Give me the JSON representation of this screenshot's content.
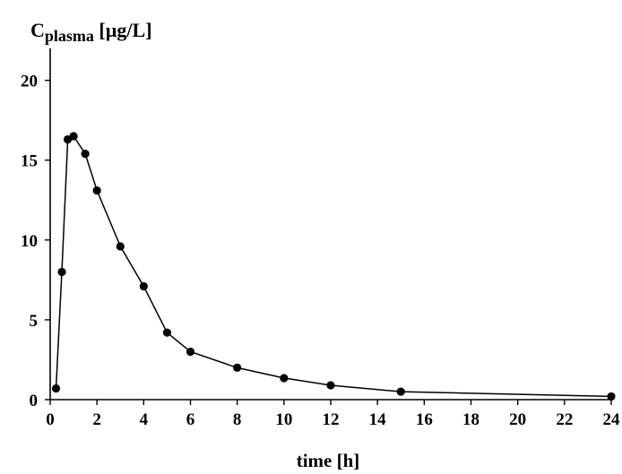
{
  "chart_data": {
    "type": "line",
    "title": "",
    "ylabel": {
      "main": "C",
      "sub": "plasma",
      "unit": " [µg/L]"
    },
    "xlabel": "time [h]",
    "xlim": [
      0,
      24
    ],
    "ylim": [
      0,
      22
    ],
    "x_ticks": [
      0,
      2,
      4,
      6,
      8,
      10,
      12,
      14,
      16,
      18,
      20,
      22,
      24
    ],
    "y_ticks": [
      0,
      5,
      10,
      15,
      20
    ],
    "grid": false,
    "legend": "none",
    "series": [
      {
        "x": [
          0.25,
          0.5,
          0.75,
          1,
          1.5,
          2,
          3,
          4,
          5,
          6,
          8,
          10,
          12,
          15,
          24
        ],
        "y": [
          0.7,
          8.0,
          16.3,
          16.5,
          15.4,
          13.1,
          9.6,
          7.1,
          4.2,
          3.0,
          2.0,
          1.35,
          0.9,
          0.5,
          0.2
        ],
        "color": "#000000",
        "marker": "circle"
      }
    ]
  }
}
